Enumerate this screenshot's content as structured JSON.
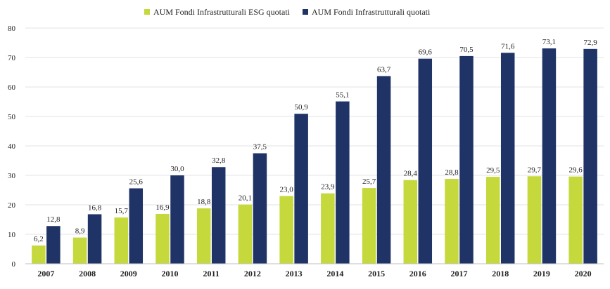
{
  "chart_data": {
    "type": "bar",
    "categories": [
      "2007",
      "2008",
      "2009",
      "2010",
      "2011",
      "2012",
      "2013",
      "2014",
      "2015",
      "2016",
      "2017",
      "2018",
      "2019",
      "2020"
    ],
    "series": [
      {
        "name": "AUM Fondi Infrastrutturali ESG quotati",
        "color": "#c5d93c",
        "values": [
          6.2,
          8.9,
          15.7,
          16.9,
          18.8,
          20.1,
          23.0,
          23.9,
          25.7,
          28.4,
          28.8,
          29.5,
          29.7,
          29.6
        ],
        "labels": [
          "6,2",
          "8,9",
          "15,7",
          "16,9",
          "18,8",
          "20,1",
          "23,0",
          "23,9",
          "25,7",
          "28,4",
          "28,8",
          "29,5",
          "29,7",
          "29,6"
        ]
      },
      {
        "name": "AUM Fondi Infrastrutturali quotati",
        "color": "#1f3366",
        "values": [
          12.8,
          16.8,
          25.6,
          30.0,
          32.8,
          37.5,
          50.9,
          55.1,
          63.7,
          69.6,
          70.5,
          71.6,
          73.1,
          72.9
        ],
        "labels": [
          "12,8",
          "16,8",
          "25,6",
          "30,0",
          "32,8",
          "37,5",
          "50,9",
          "55,1",
          "63,7",
          "69,6",
          "70,5",
          "71,6",
          "73,1",
          "72,9"
        ]
      }
    ],
    "yticks": [
      "0",
      "10",
      "20",
      "30",
      "40",
      "50",
      "60",
      "70",
      "80"
    ],
    "title": "",
    "xlabel": "",
    "ylabel": "",
    "ylim": [
      0,
      80
    ],
    "grid": true,
    "legend_position": "top-center"
  }
}
